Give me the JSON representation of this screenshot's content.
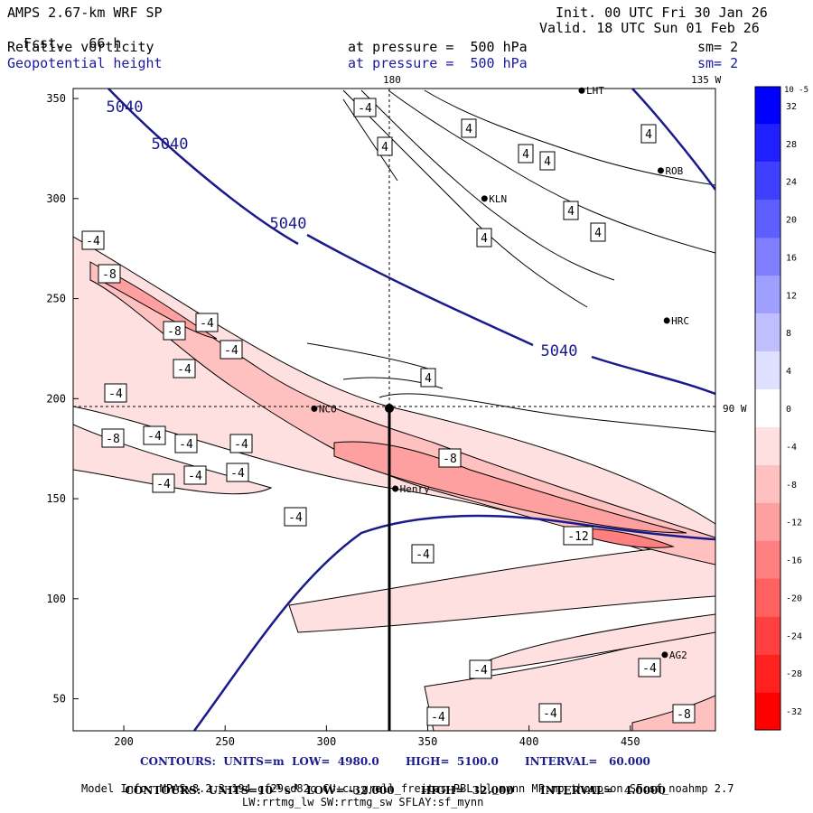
{
  "header": {
    "model": "AMPS 2.67-km WRF SP",
    "fcst_label": "Fcst.",
    "fcst_value": "66 h",
    "init": "Init. 00 UTC Fri 30 Jan 26",
    "valid": "Valid. 18 UTC Sun 01 Feb 26",
    "field1": "Relative vorticity",
    "field2": "Geopotential height",
    "pressure1": "at pressure =  500 hPa",
    "pressure2": "at pressure =  500 hPa",
    "sm1": "sm= 2",
    "sm2": "sm= 2"
  },
  "map_labels": {
    "top_lon": "180",
    "top_right": "135 W",
    "right_lat": "90 W"
  },
  "colorbar": {
    "unit_label": "10",
    "unit_exp": "-5",
    "unit_suffix": "s",
    "ticks": [
      "32",
      "28",
      "24",
      "20",
      "16",
      "12",
      "8",
      "4",
      "0",
      "-4",
      "-8",
      "-12",
      "-16",
      "-20",
      "-24",
      "-28",
      "-32"
    ],
    "colors": [
      "#0000ff",
      "#1f1fff",
      "#3f3fff",
      "#5f5fff",
      "#7f7fff",
      "#9f9fff",
      "#bfbfff",
      "#dfdfff",
      "#ffffff",
      "#ffe0e0",
      "#ffc0c0",
      "#ffa0a0",
      "#ff8080",
      "#ff6060",
      "#ff4040",
      "#ff2020",
      "#ff0000"
    ]
  },
  "stations": [
    {
      "id": "LHT",
      "name": "LHT"
    },
    {
      "id": "ROB",
      "name": "ROB"
    },
    {
      "id": "KLN",
      "name": "KLN"
    },
    {
      "id": "HRC",
      "name": "HRC"
    },
    {
      "id": "NCO",
      "name": "NCO"
    },
    {
      "id": "HENRY",
      "name": "Henry"
    },
    {
      "id": "AG2",
      "name": "AG2"
    }
  ],
  "chart_data": {
    "type": "contour-map",
    "title": "Relative vorticity / Geopotential height at 500 hPa",
    "xlim": [
      175,
      492
    ],
    "ylim": [
      34,
      355
    ],
    "xticks": [
      200,
      250,
      300,
      350,
      400,
      450
    ],
    "yticks": [
      50,
      100,
      150,
      200,
      250,
      300,
      350
    ],
    "height_contours": [
      {
        "value": 5040,
        "label": "5040"
      }
    ],
    "vorticity_labels": [
      "-4",
      "-8",
      "-4",
      "-8",
      "-8",
      "-4",
      "-4",
      "-4",
      "-4",
      "-4",
      "-4",
      "-4",
      "-4",
      "-4",
      "-4",
      "-4",
      "-8",
      "-12",
      "-4",
      "-4",
      "-4",
      "-4",
      "-4",
      "-8",
      "4",
      "4",
      "4",
      "4",
      "4",
      "4",
      "4",
      "4",
      "4"
    ],
    "stations": [
      {
        "id": "LHT",
        "x": 426,
        "y": 354
      },
      {
        "id": "ROB",
        "x": 465,
        "y": 314
      },
      {
        "id": "KLN",
        "x": 378,
        "y": 300
      },
      {
        "id": "HRC",
        "x": 468,
        "y": 239
      },
      {
        "id": "NCO",
        "x": 294,
        "y": 195
      },
      {
        "id": "HENRY",
        "x": 334,
        "y": 155
      },
      {
        "id": "AG2",
        "x": 467,
        "y": 72
      }
    ]
  },
  "footer": {
    "line1_contours": "CONTOURS:  UNITS=m  LOW=  4980.0       HIGH=  5100.0       INTERVAL=   60.000",
    "line2_contours": "CONTOURS:  UNITS=",
    "line2_unit": "10",
    "line2_exp": "-5",
    "line2_rest": " s",
    "line2_exp2": "-1",
    "line2_tail": "  LOW= -32.000       HIGH=  32.000       INTERVAL=   4.0000",
    "model_info": "Model Info: MPASv8.2.3-194-gf29cd82c CU:cu_grell_freitas PBL:bl_mynn MP:mp_thompson SF:sf_noahmp 2.7",
    "model_info2": "LW:rrtmg_lw SW:rrtmg_sw SFLAY:sf_mynn"
  }
}
